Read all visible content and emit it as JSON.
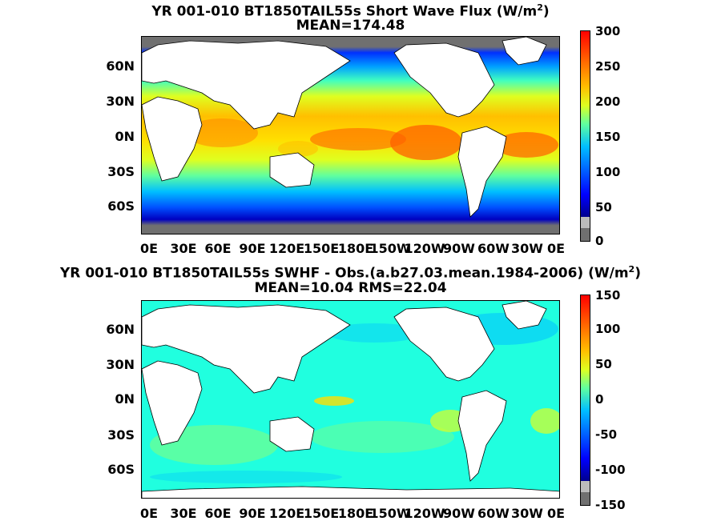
{
  "panel1": {
    "title_prefix": "YR 001-010 BT1850TAIL55s  Short Wave Flux (W/m",
    "title_sup": "2",
    "title_suffix": ")",
    "subtitle": "MEAN=174.48",
    "colorbar_labels": [
      "300",
      "250",
      "200",
      "150",
      "100",
      "50",
      "0"
    ]
  },
  "panel2": {
    "title_prefix": "YR 001-010 BT1850TAIL55s SWHF - Obs.(a.b27.03.mean.1984-2006) (W/m",
    "title_sup": "2",
    "title_suffix": ")",
    "subtitle": "MEAN=10.04 RMS=22.04",
    "colorbar_labels": [
      "150",
      "100",
      "50",
      "0",
      "-50",
      "-100",
      "-150"
    ]
  },
  "lat_labels": [
    "60N",
    "30N",
    "0N",
    "30S",
    "60S"
  ],
  "lon_labels": [
    "0E",
    "30E",
    "60E",
    "90E",
    "120E",
    "150E",
    "180E",
    "150W",
    "120W",
    "90W",
    "60W",
    "30W",
    "0E"
  ],
  "colors": {
    "land": "#ffffff",
    "ice": "#707070",
    "ice_light": "#bcbcbc",
    "jet_colormap": [
      "#00008f",
      "#0000ff",
      "#0060ff",
      "#00bfff",
      "#20ffdf",
      "#80ff80",
      "#dfff20",
      "#ffbf00",
      "#ff6000",
      "#ff0000",
      "#8f0000"
    ]
  }
}
